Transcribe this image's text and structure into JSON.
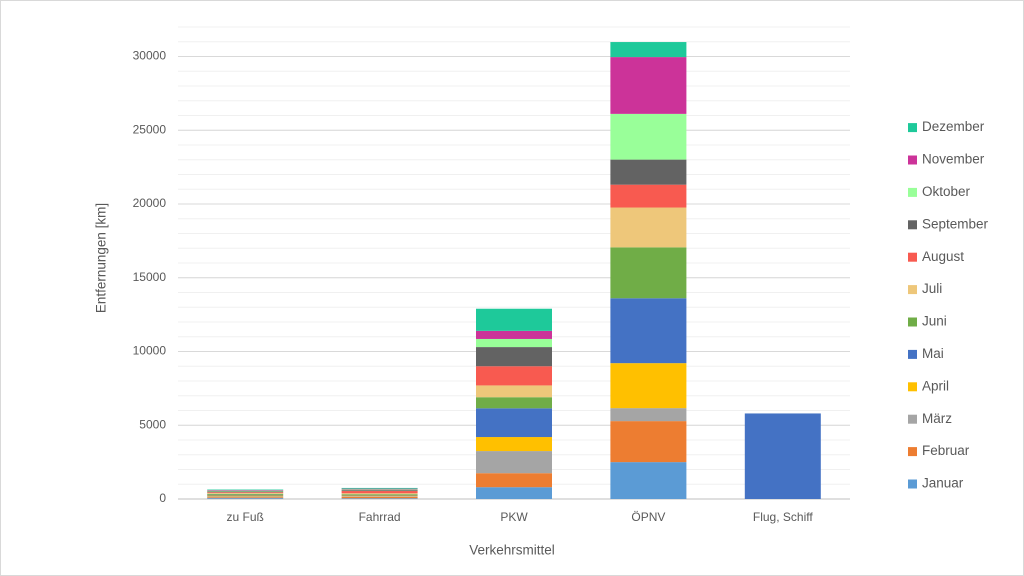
{
  "chart_data": {
    "type": "stacked_bar",
    "x_label": "Verkehrsmittel",
    "y_label": "Entfernungen [km]",
    "categories": [
      "zu Fuß",
      "Fahrrad",
      "PKW",
      "ÖPNV",
      "Flug, Schiff"
    ],
    "ylim": [
      0,
      32000
    ],
    "yticks": [
      0,
      5000,
      10000,
      15000,
      20000,
      25000,
      30000
    ],
    "grid": true,
    "minor_grid_step": 1000,
    "legend": "right",
    "series": [
      {
        "name": "Januar",
        "color": "#5b9bd5",
        "values": [
          60,
          50,
          800,
          2500,
          0
        ]
      },
      {
        "name": "Februar",
        "color": "#ed7d31",
        "values": [
          60,
          100,
          950,
          2780,
          0
        ]
      },
      {
        "name": "März",
        "color": "#a5a5a5",
        "values": [
          60,
          40,
          1500,
          880,
          0
        ]
      },
      {
        "name": "April",
        "color": "#ffc000",
        "values": [
          60,
          50,
          950,
          3050,
          0
        ]
      },
      {
        "name": "Mai",
        "color": "#4472c4",
        "values": [
          50,
          40,
          1950,
          4400,
          5800
        ]
      },
      {
        "name": "Juni",
        "color": "#70ad47",
        "values": [
          60,
          50,
          750,
          3450,
          0
        ]
      },
      {
        "name": "Juli",
        "color": "#eec77a",
        "values": [
          60,
          60,
          800,
          2700,
          0
        ]
      },
      {
        "name": "August",
        "color": "#f85a50",
        "values": [
          50,
          150,
          1300,
          1550,
          0
        ]
      },
      {
        "name": "September",
        "color": "#636363",
        "values": [
          50,
          60,
          1300,
          1700,
          0
        ]
      },
      {
        "name": "Oktober",
        "color": "#99ff99",
        "values": [
          50,
          50,
          550,
          3100,
          0
        ]
      },
      {
        "name": "November",
        "color": "#cc3399",
        "values": [
          40,
          50,
          550,
          3850,
          0
        ]
      },
      {
        "name": "Dezember",
        "color": "#1ec99a",
        "values": [
          40,
          50,
          1500,
          1020,
          0
        ]
      }
    ]
  }
}
